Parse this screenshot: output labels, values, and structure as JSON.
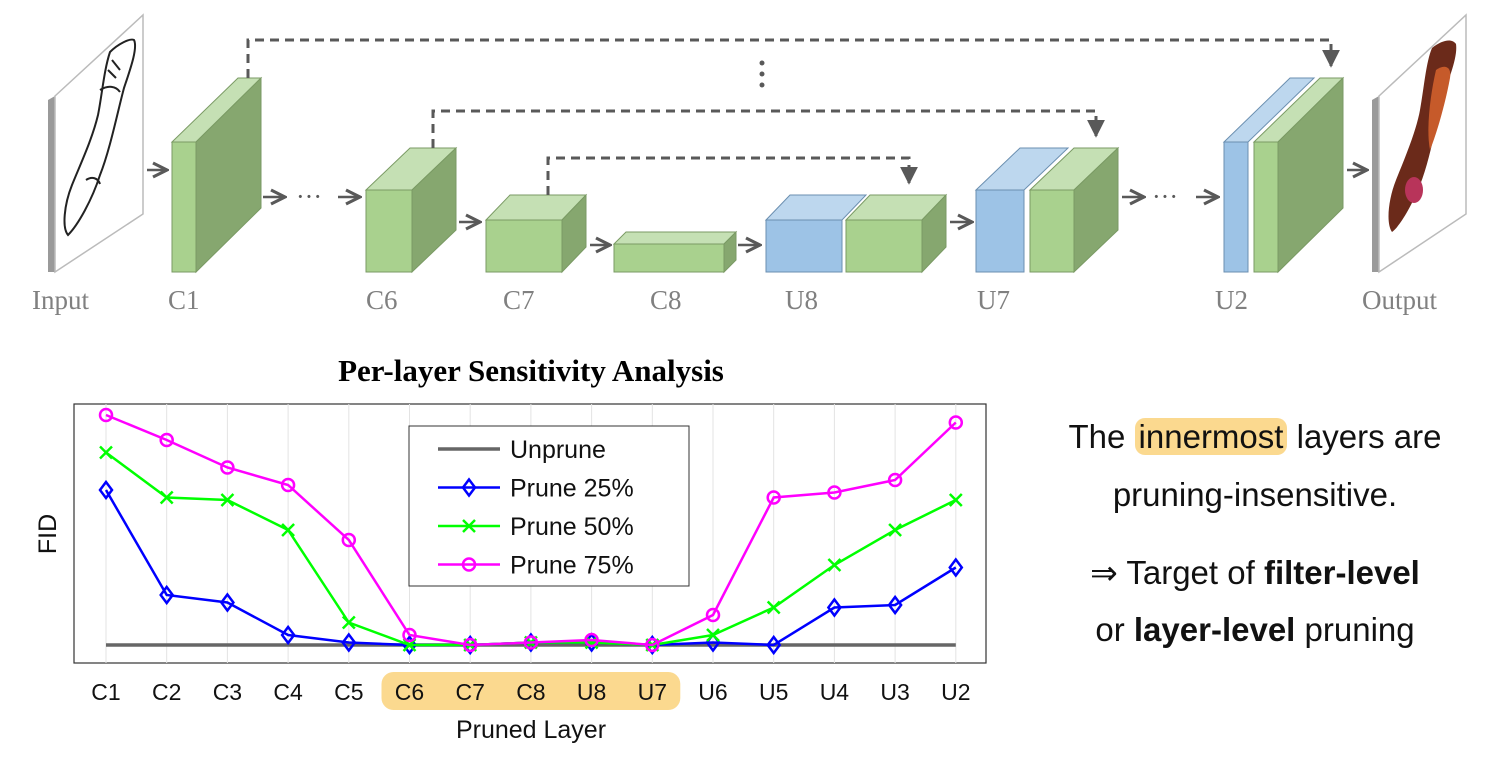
{
  "architecture": {
    "input_label": "Input",
    "output_label": "Output",
    "layer_labels": [
      "C1",
      "C6",
      "C7",
      "C8",
      "U8",
      "U7",
      "U2"
    ],
    "ellipsis": "···",
    "colors": {
      "encoder": "#a9d18e",
      "decoder": "#9dc3e6",
      "skip": "#595959"
    }
  },
  "chart_data": {
    "type": "line",
    "title": "Per-layer Sensitivity Analysis",
    "xlabel": "Pruned Layer",
    "ylabel": "FID",
    "categories": [
      "C1",
      "C2",
      "C3",
      "C4",
      "C5",
      "C6",
      "C7",
      "C8",
      "U8",
      "U7",
      "U6",
      "U5",
      "U4",
      "U3",
      "U2"
    ],
    "highlight_categories": [
      "C6",
      "C7",
      "C8",
      "U8",
      "U7"
    ],
    "y_ticks_shown": false,
    "ylim": [
      0,
      100
    ],
    "grid": "vertical",
    "legend_position": "top-center",
    "series": [
      {
        "name": "Unprune",
        "color": "#666666",
        "marker": "none",
        "values": [
          6,
          6,
          6,
          6,
          6,
          6,
          6,
          6,
          6,
          6,
          6,
          6,
          6,
          6,
          6
        ]
      },
      {
        "name": "Prune 25%",
        "color": "#0000ff",
        "marker": "diamond",
        "values": [
          68,
          26,
          23,
          10,
          7,
          6,
          6,
          7,
          7,
          6,
          7,
          6,
          21,
          22,
          37
        ]
      },
      {
        "name": "Prune 50%",
        "color": "#00ff00",
        "marker": "x",
        "values": [
          83,
          65,
          64,
          52,
          15,
          6,
          6,
          7,
          7,
          6,
          10,
          21,
          38,
          52,
          64
        ]
      },
      {
        "name": "Prune 75%",
        "color": "#ff00ff",
        "marker": "circle",
        "values": [
          98,
          88,
          77,
          70,
          48,
          10,
          6,
          7,
          8,
          6,
          18,
          65,
          67,
          72,
          95
        ]
      }
    ]
  },
  "note": {
    "line1_pre": "The",
    "line1_highlight": "innermost",
    "line1_post": "layers are",
    "line2": "pruning-insensitive.",
    "line3_pre": "⇒ Target of",
    "line3_bold": "filter-level",
    "line4_pre": "or",
    "line4_bold": "layer-level",
    "line4_post": "pruning"
  }
}
